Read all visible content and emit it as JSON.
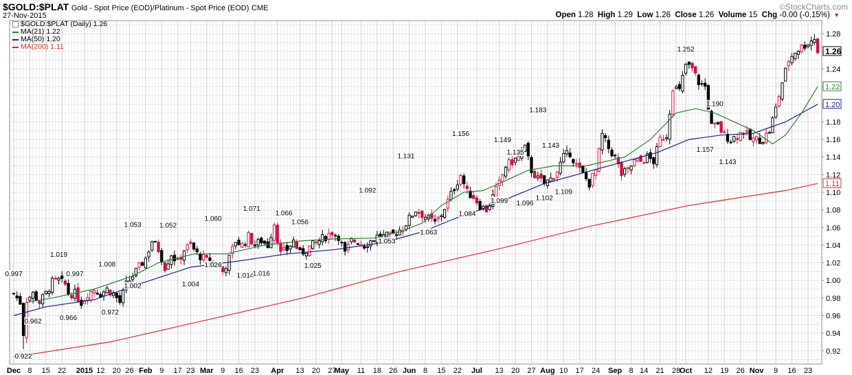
{
  "header": {
    "symbol": "$GOLD:$PLAT",
    "subtitle": "Gold - Spot Price (EOD)/Platinum  - Spot Price (EOD)",
    "exchange": "CME",
    "date": "27-Nov-2015",
    "brand": "StockCharts.com",
    "brand_mark": "©"
  },
  "ohlc": {
    "open_label": "Open",
    "open": "1.28",
    "high_label": "High",
    "high": "1.29",
    "low_label": "Low",
    "low": "1.26",
    "close_label": "Close",
    "close": "1.26",
    "volume_label": "Volume",
    "volume": "15",
    "chg_label": "Chg",
    "chg": "-0.00 (-0.15%)",
    "chg_icon": "down-triangle-icon"
  },
  "legend": [
    {
      "text": "$GOLD:$PLAT (Daily) 1.26",
      "color": "#000000",
      "kind": "price"
    },
    {
      "text": "MA(21) 1.22",
      "color": "#2e7d32",
      "kind": "line"
    },
    {
      "text": "MA(50) 1.20",
      "color": "#1a237e",
      "kind": "line"
    },
    {
      "text": "MA(200) 1.11",
      "color": "#d32f2f",
      "kind": "line"
    }
  ],
  "chart_data": {
    "type": "candlestick",
    "ylim": [
      0.905,
      1.295
    ],
    "y_ticks": [
      "0.92",
      "0.94",
      "0.96",
      "0.98",
      "1.00",
      "1.02",
      "1.04",
      "1.06",
      "1.08",
      "1.10",
      "1.12",
      "1.14",
      "1.16",
      "1.18",
      "1.20",
      "1.22",
      "1.24",
      "1.26",
      "1.28"
    ],
    "grid": true,
    "y_axis_side": "right",
    "x_ticks": [
      {
        "label": "Dec",
        "bold": true,
        "day": 0
      },
      {
        "label": "8",
        "day": 5
      },
      {
        "label": "15",
        "day": 10
      },
      {
        "label": "22",
        "day": 15
      },
      {
        "label": "2015",
        "bold": true,
        "day": 22
      },
      {
        "label": "12",
        "day": 27
      },
      {
        "label": "20",
        "day": 32
      },
      {
        "label": "26",
        "day": 36
      },
      {
        "label": "Feb",
        "bold": true,
        "day": 41
      },
      {
        "label": "9",
        "day": 46
      },
      {
        "label": "17",
        "day": 51
      },
      {
        "label": "23",
        "day": 55
      },
      {
        "label": "Mar",
        "bold": true,
        "day": 60
      },
      {
        "label": "9",
        "day": 65
      },
      {
        "label": "16",
        "day": 70
      },
      {
        "label": "23",
        "day": 75
      },
      {
        "label": "Apr",
        "bold": true,
        "day": 82
      },
      {
        "label": "13",
        "day": 89
      },
      {
        "label": "20",
        "day": 94
      },
      {
        "label": "27",
        "day": 99
      },
      {
        "label": "May",
        "bold": true,
        "day": 102
      },
      {
        "label": "11",
        "day": 108
      },
      {
        "label": "18",
        "day": 113
      },
      {
        "label": "26",
        "day": 118
      },
      {
        "label": "Jun",
        "bold": true,
        "day": 123
      },
      {
        "label": "8",
        "day": 128
      },
      {
        "label": "15",
        "day": 133
      },
      {
        "label": "22",
        "day": 138
      },
      {
        "label": "Jul",
        "bold": true,
        "day": 144
      },
      {
        "label": "13",
        "day": 151
      },
      {
        "label": "20",
        "day": 156
      },
      {
        "label": "27",
        "day": 161
      },
      {
        "label": "Aug",
        "bold": true,
        "day": 166
      },
      {
        "label": "10",
        "day": 171
      },
      {
        "label": "17",
        "day": 176
      },
      {
        "label": "24",
        "day": 181
      },
      {
        "label": "Sep",
        "bold": true,
        "day": 187
      },
      {
        "label": "8",
        "day": 192
      },
      {
        "label": "14",
        "day": 196
      },
      {
        "label": "21",
        "day": 201
      },
      {
        "label": "28",
        "day": 206
      },
      {
        "label": "Oct",
        "bold": true,
        "day": 209
      },
      {
        "label": "12",
        "day": 216
      },
      {
        "label": "19",
        "day": 221
      },
      {
        "label": "26",
        "day": 226
      },
      {
        "label": "Nov",
        "bold": true,
        "day": 231
      },
      {
        "label": "9",
        "day": 237
      },
      {
        "label": "16",
        "day": 242
      },
      {
        "label": "23",
        "day": 247
      }
    ],
    "price_points": [
      [
        0,
        0.985
      ],
      [
        2,
        0.975
      ],
      [
        3,
        0.94
      ],
      [
        4,
        0.978
      ],
      [
        6,
        0.985
      ],
      [
        8,
        0.975
      ],
      [
        10,
        0.985
      ],
      [
        12,
        0.998
      ],
      [
        14,
        1.0
      ],
      [
        16,
        0.995
      ],
      [
        17,
        0.985
      ],
      [
        19,
        0.985
      ],
      [
        21,
        0.975
      ],
      [
        23,
        0.985
      ],
      [
        25,
        0.99
      ],
      [
        27,
        0.985
      ],
      [
        29,
        0.99
      ],
      [
        31,
        0.985
      ],
      [
        33,
        0.975
      ],
      [
        35,
        0.995
      ],
      [
        37,
        1.005
      ],
      [
        39,
        1.015
      ],
      [
        41,
        1.025
      ],
      [
        43,
        1.045
      ],
      [
        45,
        1.035
      ],
      [
        47,
        1.015
      ],
      [
        49,
        1.03
      ],
      [
        51,
        1.02
      ],
      [
        53,
        1.035
      ],
      [
        55,
        1.04
      ],
      [
        57,
        1.03
      ],
      [
        59,
        1.025
      ],
      [
        61,
        1.02
      ],
      [
        63,
        1.02
      ],
      [
        65,
        1.01
      ],
      [
        67,
        1.025
      ],
      [
        69,
        1.045
      ],
      [
        71,
        1.04
      ],
      [
        73,
        1.05
      ],
      [
        75,
        1.04
      ],
      [
        77,
        1.045
      ],
      [
        79,
        1.04
      ],
      [
        81,
        1.065
      ],
      [
        83,
        1.03
      ],
      [
        85,
        1.035
      ],
      [
        87,
        1.045
      ],
      [
        89,
        1.03
      ],
      [
        91,
        1.035
      ],
      [
        93,
        1.04
      ],
      [
        95,
        1.045
      ],
      [
        97,
        1.05
      ],
      [
        99,
        1.055
      ],
      [
        101,
        1.05
      ],
      [
        103,
        1.03
      ],
      [
        105,
        1.045
      ],
      [
        107,
        1.045
      ],
      [
        109,
        1.04
      ],
      [
        111,
        1.045
      ],
      [
        113,
        1.05
      ],
      [
        115,
        1.05
      ],
      [
        117,
        1.05
      ],
      [
        119,
        1.055
      ],
      [
        121,
        1.06
      ],
      [
        123,
        1.07
      ],
      [
        125,
        1.08
      ],
      [
        127,
        1.075
      ],
      [
        129,
        1.07
      ],
      [
        131,
        1.065
      ],
      [
        133,
        1.075
      ],
      [
        135,
        1.09
      ],
      [
        137,
        1.105
      ],
      [
        139,
        1.12
      ],
      [
        141,
        1.1
      ],
      [
        143,
        1.095
      ],
      [
        145,
        1.085
      ],
      [
        147,
        1.08
      ],
      [
        149,
        1.095
      ],
      [
        151,
        1.11
      ],
      [
        153,
        1.13
      ],
      [
        155,
        1.135
      ],
      [
        157,
        1.14
      ],
      [
        159,
        1.15
      ],
      [
        161,
        1.125
      ],
      [
        163,
        1.115
      ],
      [
        165,
        1.11
      ],
      [
        167,
        1.115
      ],
      [
        169,
        1.125
      ],
      [
        171,
        1.14
      ],
      [
        173,
        1.145
      ],
      [
        175,
        1.13
      ],
      [
        177,
        1.12
      ],
      [
        179,
        1.11
      ],
      [
        181,
        1.125
      ],
      [
        183,
        1.165
      ],
      [
        185,
        1.15
      ],
      [
        187,
        1.14
      ],
      [
        189,
        1.12
      ],
      [
        191,
        1.125
      ],
      [
        193,
        1.135
      ],
      [
        195,
        1.135
      ],
      [
        197,
        1.14
      ],
      [
        199,
        1.135
      ],
      [
        201,
        1.16
      ],
      [
        203,
        1.165
      ],
      [
        205,
        1.22
      ],
      [
        207,
        1.215
      ],
      [
        209,
        1.245
      ],
      [
        211,
        1.24
      ],
      [
        213,
        1.225
      ],
      [
        215,
        1.22
      ],
      [
        217,
        1.175
      ],
      [
        219,
        1.175
      ],
      [
        221,
        1.165
      ],
      [
        223,
        1.16
      ],
      [
        225,
        1.165
      ],
      [
        227,
        1.17
      ],
      [
        229,
        1.16
      ],
      [
        231,
        1.16
      ],
      [
        233,
        1.16
      ],
      [
        235,
        1.17
      ],
      [
        237,
        1.195
      ],
      [
        239,
        1.225
      ],
      [
        241,
        1.25
      ],
      [
        243,
        1.26
      ],
      [
        245,
        1.265
      ],
      [
        247,
        1.27
      ],
      [
        249,
        1.275
      ],
      [
        250,
        1.26
      ]
    ],
    "annotations": [
      {
        "day": 0,
        "value": 0.997,
        "text": "0.997",
        "pos": "above"
      },
      {
        "day": 3,
        "value": 0.922,
        "text": "0.922",
        "pos": "below"
      },
      {
        "day": 6,
        "value": 0.962,
        "text": "0.962",
        "pos": "below"
      },
      {
        "day": 14,
        "value": 1.019,
        "text": "1.019",
        "pos": "above"
      },
      {
        "day": 19,
        "value": 0.997,
        "text": "0.997",
        "pos": "above"
      },
      {
        "day": 17,
        "value": 0.966,
        "text": "0.966",
        "pos": "below"
      },
      {
        "day": 29,
        "value": 1.008,
        "text": "1.008",
        "pos": "above"
      },
      {
        "day": 30,
        "value": 0.972,
        "text": "0.972",
        "pos": "below"
      },
      {
        "day": 37,
        "value": 1.053,
        "text": "1.053",
        "pos": "above"
      },
      {
        "day": 37,
        "value": 1.002,
        "text": "1.002",
        "pos": "below"
      },
      {
        "day": 48,
        "value": 1.052,
        "text": "1.052",
        "pos": "above"
      },
      {
        "day": 55,
        "value": 1.004,
        "text": "1.004",
        "pos": "below"
      },
      {
        "day": 62,
        "value": 1.06,
        "text": "1.060",
        "pos": "above"
      },
      {
        "day": 62,
        "value": 1.026,
        "text": "1.026",
        "pos": "below"
      },
      {
        "day": 74,
        "value": 1.071,
        "text": "1.071",
        "pos": "above"
      },
      {
        "day": 72,
        "value": 1.014,
        "text": "1.014",
        "pos": "below"
      },
      {
        "day": 77,
        "value": 1.016,
        "text": "1.016",
        "pos": "below"
      },
      {
        "day": 84,
        "value": 1.066,
        "text": "1.066",
        "pos": "above"
      },
      {
        "day": 89,
        "value": 1.056,
        "text": "1.056",
        "pos": "above"
      },
      {
        "day": 93,
        "value": 1.025,
        "text": "1.025",
        "pos": "below"
      },
      {
        "day": 110,
        "value": 1.092,
        "text": "1.092",
        "pos": "above"
      },
      {
        "day": 116,
        "value": 1.053,
        "text": "1.053",
        "pos": "below"
      },
      {
        "day": 122,
        "value": 1.131,
        "text": "1.131",
        "pos": "above"
      },
      {
        "day": 129,
        "value": 1.063,
        "text": "1.063",
        "pos": "below"
      },
      {
        "day": 139,
        "value": 1.156,
        "text": "1.156",
        "pos": "above"
      },
      {
        "day": 141,
        "value": 1.084,
        "text": "1.084",
        "pos": "below"
      },
      {
        "day": 152,
        "value": 1.149,
        "text": "1.149",
        "pos": "above"
      },
      {
        "day": 156,
        "value": 1.135,
        "text": "1.135",
        "pos": "above"
      },
      {
        "day": 151,
        "value": 1.099,
        "text": "1.099",
        "pos": "below"
      },
      {
        "day": 159,
        "value": 1.096,
        "text": "1.096",
        "pos": "below"
      },
      {
        "day": 163,
        "value": 1.183,
        "text": "1.183",
        "pos": "above"
      },
      {
        "day": 167,
        "value": 1.143,
        "text": "1.143",
        "pos": "above"
      },
      {
        "day": 165,
        "value": 1.102,
        "text": "1.102",
        "pos": "below"
      },
      {
        "day": 171,
        "value": 1.109,
        "text": "1.109",
        "pos": "below"
      },
      {
        "day": 209,
        "value": 1.252,
        "text": "1.252",
        "pos": "above"
      },
      {
        "day": 218,
        "value": 1.19,
        "text": "1.190",
        "pos": "above"
      },
      {
        "day": 215,
        "value": 1.157,
        "text": "1.157",
        "pos": "below"
      },
      {
        "day": 222,
        "value": 1.143,
        "text": "1.143",
        "pos": "below"
      }
    ],
    "ma21_points": [
      [
        4,
        0.975
      ],
      [
        12,
        0.98
      ],
      [
        25,
        0.99
      ],
      [
        37,
        1.005
      ],
      [
        45,
        1.02
      ],
      [
        56,
        1.03
      ],
      [
        66,
        1.03
      ],
      [
        78,
        1.04
      ],
      [
        90,
        1.045
      ],
      [
        100,
        1.047
      ],
      [
        112,
        1.048
      ],
      [
        120,
        1.055
      ],
      [
        127,
        1.065
      ],
      [
        133,
        1.085
      ],
      [
        140,
        1.1
      ],
      [
        146,
        1.102
      ],
      [
        154,
        1.115
      ],
      [
        160,
        1.125
      ],
      [
        168,
        1.13
      ],
      [
        178,
        1.13
      ],
      [
        190,
        1.14
      ],
      [
        198,
        1.16
      ],
      [
        206,
        1.19
      ],
      [
        212,
        1.195
      ],
      [
        218,
        1.19
      ],
      [
        224,
        1.18
      ],
      [
        230,
        1.17
      ],
      [
        236,
        1.155
      ],
      [
        240,
        1.165
      ],
      [
        245,
        1.19
      ],
      [
        250,
        1.22
      ]
    ],
    "ma50_points": [
      [
        0,
        0.96
      ],
      [
        10,
        0.97
      ],
      [
        25,
        0.978
      ],
      [
        40,
        0.997
      ],
      [
        55,
        1.015
      ],
      [
        70,
        1.022
      ],
      [
        85,
        1.03
      ],
      [
        100,
        1.035
      ],
      [
        115,
        1.043
      ],
      [
        127,
        1.055
      ],
      [
        137,
        1.07
      ],
      [
        145,
        1.08
      ],
      [
        155,
        1.095
      ],
      [
        165,
        1.11
      ],
      [
        175,
        1.12
      ],
      [
        190,
        1.135
      ],
      [
        200,
        1.145
      ],
      [
        210,
        1.16
      ],
      [
        220,
        1.165
      ],
      [
        230,
        1.167
      ],
      [
        240,
        1.18
      ],
      [
        250,
        1.2
      ]
    ],
    "ma200_points": [
      [
        0,
        0.913
      ],
      [
        30,
        0.93
      ],
      [
        60,
        0.955
      ],
      [
        90,
        0.98
      ],
      [
        120,
        1.01
      ],
      [
        150,
        1.035
      ],
      [
        180,
        1.062
      ],
      [
        210,
        1.085
      ],
      [
        240,
        1.102
      ],
      [
        250,
        1.11
      ]
    ],
    "price_labels": [
      {
        "text": "1.26",
        "value": 1.26,
        "color": "#000000",
        "bold": true
      },
      {
        "text": "1.22",
        "value": 1.22,
        "color": "#2e7d32",
        "bold": false
      },
      {
        "text": "1.20",
        "value": 1.2,
        "color": "#1a237e",
        "bold": false
      },
      {
        "text": "1.11",
        "value": 1.11,
        "color": "#d32f2f",
        "bold": false
      }
    ]
  }
}
